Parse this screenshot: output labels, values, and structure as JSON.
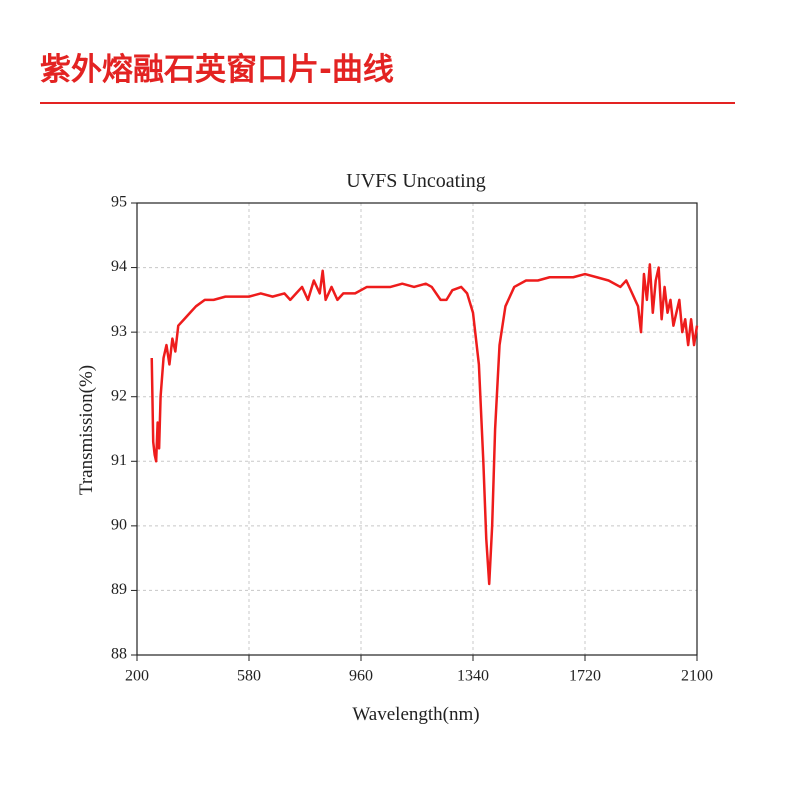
{
  "header": {
    "title": "紫外熔融石英窗口片-曲线"
  },
  "chart_data": {
    "type": "line",
    "title": "UVFS Uncoating",
    "x_label": "Wavelength(nm)",
    "y_label": "Transmission(%)",
    "xlim": [
      200,
      2100
    ],
    "xticks": [
      200,
      580,
      960,
      1340,
      1720,
      2100
    ],
    "ylim": [
      88,
      95
    ],
    "yticks": [
      88,
      89,
      90,
      91,
      92,
      93,
      94,
      95
    ],
    "grid": true,
    "series": [
      {
        "name": "UVFS Uncoating",
        "color": "#ee1c1c",
        "x": [
          250,
          255,
          260,
          265,
          270,
          275,
          280,
          290,
          300,
          310,
          320,
          330,
          340,
          360,
          380,
          400,
          430,
          460,
          500,
          540,
          580,
          620,
          660,
          700,
          720,
          740,
          760,
          780,
          800,
          820,
          830,
          840,
          860,
          880,
          900,
          940,
          980,
          1020,
          1060,
          1100,
          1140,
          1180,
          1200,
          1230,
          1250,
          1270,
          1300,
          1320,
          1340,
          1360,
          1375,
          1385,
          1395,
          1405,
          1415,
          1430,
          1450,
          1480,
          1520,
          1560,
          1600,
          1640,
          1680,
          1720,
          1760,
          1800,
          1840,
          1860,
          1880,
          1900,
          1910,
          1920,
          1930,
          1940,
          1950,
          1960,
          1970,
          1980,
          1990,
          2000,
          2010,
          2020,
          2040,
          2050,
          2060,
          2070,
          2080,
          2090,
          2100
        ],
        "values": [
          92.6,
          91.3,
          91.1,
          91.0,
          91.6,
          91.2,
          92.0,
          92.6,
          92.8,
          92.5,
          92.9,
          92.7,
          93.1,
          93.2,
          93.3,
          93.4,
          93.5,
          93.5,
          93.55,
          93.55,
          93.55,
          93.6,
          93.55,
          93.6,
          93.5,
          93.6,
          93.7,
          93.5,
          93.8,
          93.6,
          93.95,
          93.5,
          93.7,
          93.5,
          93.6,
          93.6,
          93.7,
          93.7,
          93.7,
          93.75,
          93.7,
          93.75,
          93.7,
          93.5,
          93.5,
          93.65,
          93.7,
          93.6,
          93.3,
          92.5,
          91.0,
          89.8,
          89.1,
          90.0,
          91.5,
          92.8,
          93.4,
          93.7,
          93.8,
          93.8,
          93.85,
          93.85,
          93.85,
          93.9,
          93.85,
          93.8,
          93.7,
          93.8,
          93.6,
          93.4,
          93.0,
          93.9,
          93.5,
          94.05,
          93.3,
          93.8,
          94.0,
          93.2,
          93.7,
          93.3,
          93.5,
          93.1,
          93.5,
          93.0,
          93.2,
          92.8,
          93.2,
          92.8,
          93.1
        ]
      }
    ]
  }
}
